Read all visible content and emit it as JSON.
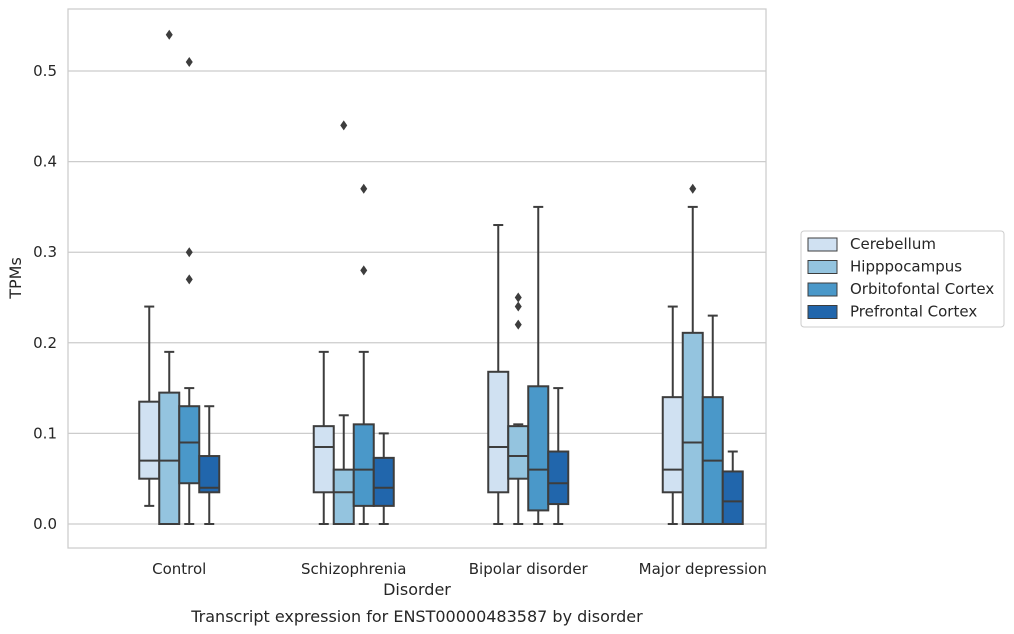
{
  "chart_data": {
    "type": "box",
    "title": "Transcript expression for ENST00000483587 by disorder",
    "xlabel": "Disorder",
    "ylabel": "TPMs",
    "ylim": [
      -0.026,
      0.57
    ],
    "yticks": [
      0.0,
      0.1,
      0.2,
      0.3,
      0.4,
      0.5
    ],
    "ytick_labels": [
      "0.0",
      "0.1",
      "0.2",
      "0.3",
      "0.4",
      "0.5"
    ],
    "grid": "horizontal",
    "legend_position": "right",
    "categories": [
      "Control",
      "Schizophrenia",
      "Bipolar disorder",
      "Major depression"
    ],
    "series": [
      {
        "name": "Cerebellum",
        "color": "#d0e1f2",
        "boxes": [
          {
            "whislo": 0.02,
            "q1": 0.05,
            "med": 0.07,
            "q3": 0.135,
            "whishi": 0.24,
            "fliers": []
          },
          {
            "whislo": 0.0,
            "q1": 0.035,
            "med": 0.085,
            "q3": 0.108,
            "whishi": 0.19,
            "fliers": []
          },
          {
            "whislo": 0.0,
            "q1": 0.035,
            "med": 0.085,
            "q3": 0.168,
            "whishi": 0.33,
            "fliers": []
          },
          {
            "whislo": 0.0,
            "q1": 0.035,
            "med": 0.06,
            "q3": 0.14,
            "whishi": 0.24,
            "fliers": []
          }
        ]
      },
      {
        "name": "Hipppocampus",
        "color": "#94c4df",
        "boxes": [
          {
            "whislo": 0.0,
            "q1": 0.0,
            "med": 0.07,
            "q3": 0.145,
            "whishi": 0.19,
            "fliers": [
              0.54
            ]
          },
          {
            "whislo": 0.0,
            "q1": 0.0,
            "med": 0.035,
            "q3": 0.06,
            "whishi": 0.12,
            "fliers": [
              0.44
            ]
          },
          {
            "whislo": 0.0,
            "q1": 0.05,
            "med": 0.075,
            "q3": 0.108,
            "whishi": 0.11,
            "fliers": [
              0.22,
              0.24,
              0.25
            ]
          },
          {
            "whislo": 0.0,
            "q1": 0.0,
            "med": 0.09,
            "q3": 0.211,
            "whishi": 0.35,
            "fliers": [
              0.37
            ]
          }
        ]
      },
      {
        "name": "Orbitofontal Cortex",
        "color": "#4a98c9",
        "boxes": [
          {
            "whislo": 0.0,
            "q1": 0.045,
            "med": 0.09,
            "q3": 0.13,
            "whishi": 0.15,
            "fliers": [
              0.27,
              0.3,
              0.51
            ]
          },
          {
            "whislo": 0.0,
            "q1": 0.02,
            "med": 0.06,
            "q3": 0.11,
            "whishi": 0.19,
            "fliers": [
              0.28,
              0.37
            ]
          },
          {
            "whislo": 0.0,
            "q1": 0.015,
            "med": 0.06,
            "q3": 0.152,
            "whishi": 0.35,
            "fliers": []
          },
          {
            "whislo": 0.0,
            "q1": 0.0,
            "med": 0.07,
            "q3": 0.14,
            "whishi": 0.23,
            "fliers": []
          }
        ]
      },
      {
        "name": "Prefrontal Cortex",
        "color": "#2166ac",
        "boxes": [
          {
            "whislo": 0.0,
            "q1": 0.035,
            "med": 0.04,
            "q3": 0.075,
            "whishi": 0.13,
            "fliers": []
          },
          {
            "whislo": 0.0,
            "q1": 0.02,
            "med": 0.04,
            "q3": 0.073,
            "whishi": 0.1,
            "fliers": []
          },
          {
            "whislo": 0.0,
            "q1": 0.022,
            "med": 0.045,
            "q3": 0.08,
            "whishi": 0.15,
            "fliers": []
          },
          {
            "whislo": 0.0,
            "q1": 0.0,
            "med": 0.025,
            "q3": 0.058,
            "whishi": 0.08,
            "fliers": []
          }
        ]
      }
    ]
  },
  "style": {
    "line_color": "#3d3d3d",
    "grid_color": "#cccccc",
    "frame_color": "#cccccc"
  }
}
